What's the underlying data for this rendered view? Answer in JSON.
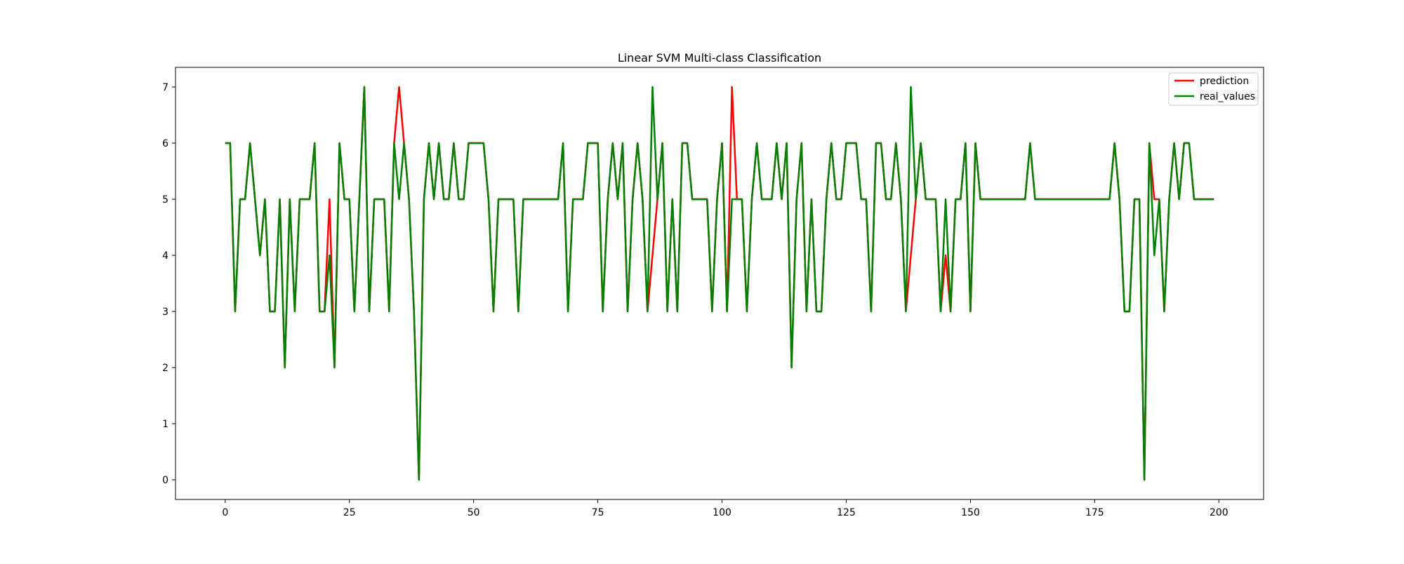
{
  "chart_data": {
    "type": "line",
    "title": "Linear SVM Multi-class Classification",
    "xlabel": "",
    "ylabel": "",
    "xlim": [
      -10,
      209
    ],
    "ylim": [
      -0.35,
      7.35
    ],
    "xticks": [
      0,
      25,
      50,
      75,
      100,
      125,
      150,
      175,
      200
    ],
    "yticks": [
      0,
      1,
      2,
      3,
      4,
      5,
      6,
      7
    ],
    "grid": false,
    "legend_position": "top-right",
    "colors": {
      "prediction": "#ff0000",
      "real_values": "#008000",
      "axes": "#000000",
      "background": "#ffffff"
    },
    "series": [
      {
        "name": "prediction",
        "color": "#ff0000",
        "values": [
          6,
          6,
          3,
          5,
          5,
          6,
          5,
          4,
          5,
          3,
          3,
          5,
          2,
          5,
          3,
          5,
          5,
          5,
          6,
          3,
          3,
          5,
          2,
          6,
          5,
          5,
          3,
          5,
          7,
          3,
          5,
          5,
          5,
          3,
          6,
          7,
          6,
          5,
          3,
          0,
          5,
          6,
          5,
          6,
          5,
          5,
          6,
          5,
          5,
          6,
          6,
          6,
          6,
          5,
          3,
          5,
          5,
          5,
          5,
          3,
          5,
          5,
          5,
          5,
          5,
          5,
          5,
          5,
          6,
          3,
          5,
          5,
          5,
          6,
          6,
          6,
          3,
          5,
          6,
          5,
          6,
          3,
          5,
          6,
          5,
          3,
          4,
          5,
          6,
          3,
          5,
          3,
          6,
          6,
          5,
          5,
          5,
          5,
          3,
          5,
          6,
          3,
          7,
          5,
          5,
          3,
          5,
          6,
          5,
          5,
          5,
          6,
          5,
          6,
          2,
          5,
          6,
          3,
          5,
          3,
          3,
          5,
          6,
          5,
          5,
          6,
          6,
          6,
          5,
          5,
          3,
          6,
          6,
          5,
          5,
          6,
          5,
          3,
          4,
          5,
          6,
          5,
          5,
          5,
          3,
          4,
          3,
          5,
          5,
          6,
          3,
          6,
          5,
          5,
          5,
          5,
          5,
          5,
          5,
          5,
          5,
          5,
          6,
          5,
          5,
          5,
          5,
          5,
          5,
          5,
          5,
          5,
          5,
          5,
          5,
          5,
          5,
          5,
          5,
          6,
          5,
          3,
          3,
          5,
          5,
          0,
          6,
          5,
          5,
          3,
          5,
          6,
          5,
          6,
          6,
          5,
          5,
          5,
          5,
          5
        ]
      },
      {
        "name": "real_values",
        "color": "#008000",
        "values": [
          6,
          6,
          3,
          5,
          5,
          6,
          5,
          4,
          5,
          3,
          3,
          5,
          2,
          5,
          3,
          5,
          5,
          5,
          6,
          3,
          3,
          4,
          2,
          6,
          5,
          5,
          3,
          5,
          7,
          3,
          5,
          5,
          5,
          3,
          6,
          5,
          6,
          5,
          3,
          0,
          5,
          6,
          5,
          6,
          5,
          5,
          6,
          5,
          5,
          6,
          6,
          6,
          6,
          5,
          3,
          5,
          5,
          5,
          5,
          3,
          5,
          5,
          5,
          5,
          5,
          5,
          5,
          5,
          6,
          3,
          5,
          5,
          5,
          6,
          6,
          6,
          3,
          5,
          6,
          5,
          6,
          3,
          5,
          6,
          5,
          3,
          7,
          5,
          6,
          3,
          5,
          3,
          6,
          6,
          5,
          5,
          5,
          5,
          3,
          5,
          6,
          3,
          5,
          5,
          5,
          3,
          5,
          6,
          5,
          5,
          5,
          6,
          5,
          6,
          2,
          5,
          6,
          3,
          5,
          3,
          3,
          5,
          6,
          5,
          5,
          6,
          6,
          6,
          5,
          5,
          3,
          6,
          6,
          5,
          5,
          6,
          5,
          3,
          7,
          5,
          6,
          5,
          5,
          5,
          3,
          5,
          3,
          5,
          5,
          6,
          3,
          6,
          5,
          5,
          5,
          5,
          5,
          5,
          5,
          5,
          5,
          5,
          6,
          5,
          5,
          5,
          5,
          5,
          5,
          5,
          5,
          5,
          5,
          5,
          5,
          5,
          5,
          5,
          5,
          6,
          5,
          3,
          3,
          5,
          5,
          0,
          6,
          4,
          5,
          3,
          5,
          6,
          5,
          6,
          6,
          5,
          5,
          5,
          5,
          5
        ]
      }
    ]
  }
}
